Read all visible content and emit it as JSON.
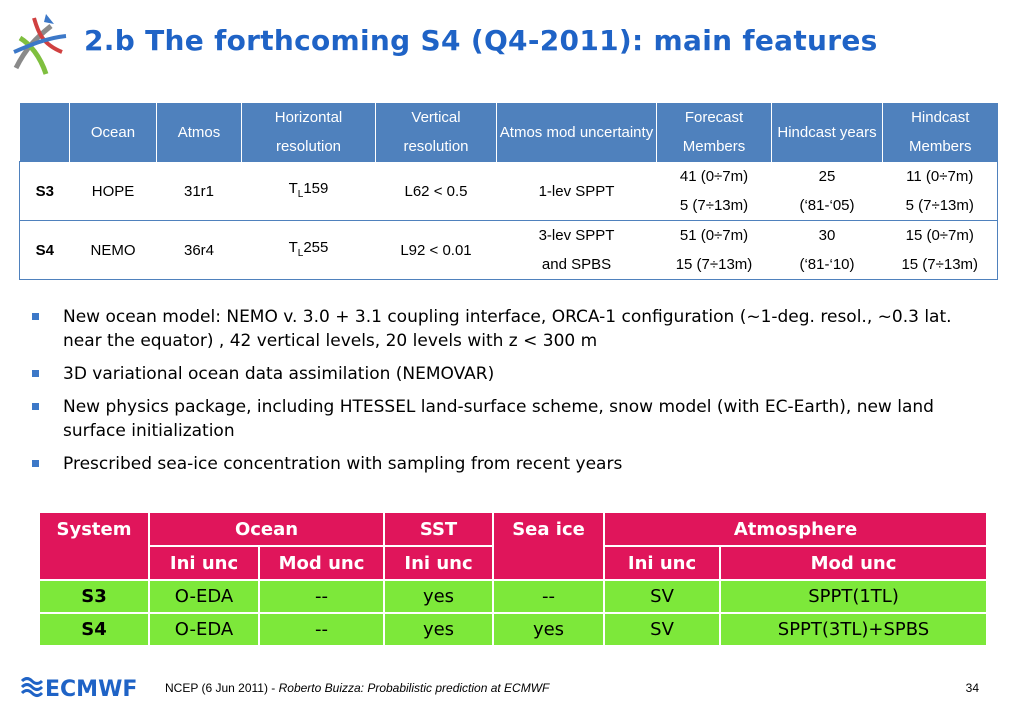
{
  "slide": {
    "title": "2.b The forthcoming S4 (Q4-2011): main features"
  },
  "table1": {
    "headers": [
      "",
      "Ocean",
      "Atmos",
      "Horizontal resolution",
      "Vertical resolution",
      "Atmos mod uncertainty",
      "Forecast Members",
      "Hindcast years",
      "Hindcast Members"
    ],
    "rows": [
      {
        "system": "S3",
        "ocean": "HOPE",
        "atmos": "31r1",
        "hres_prefix": "T",
        "hres_sub": "L",
        "hres_num": "159",
        "vres": "L62 < 0.5",
        "atm_unc": [
          "1-lev SPPT"
        ],
        "fc_members": [
          "41 (0÷7m)",
          "5 (7÷13m)"
        ],
        "hc_years": [
          "25",
          "(‘81-‘05)"
        ],
        "hc_members": [
          "11 (0÷7m)",
          "5 (7÷13m)"
        ]
      },
      {
        "system": "S4",
        "ocean": "NEMO",
        "atmos": "36r4",
        "hres_prefix": "T",
        "hres_sub": "L",
        "hres_num": "255",
        "vres": "L92 < 0.01",
        "atm_unc": [
          "3-lev SPPT",
          "and SPBS"
        ],
        "fc_members": [
          "51 (0÷7m)",
          "15 (7÷13m)"
        ],
        "hc_years": [
          "30",
          "(‘81-‘10)"
        ],
        "hc_members": [
          "15 (0÷7m)",
          "15 (7÷13m)"
        ]
      }
    ]
  },
  "bullets": [
    "New ocean model: NEMO v. 3.0 + 3.1 coupling interface,  ORCA-1 configuration (~1-deg. resol., ~0.3 lat. near the equator) , 42 vertical levels, 20 levels with z < 300 m",
    "3D variational ocean data assimilation (NEMOVAR)",
    "New physics package, including HTESSEL land-surface scheme, snow model (with EC-Earth), new land surface initialization",
    "Prescribed sea-ice concentration with sampling from recent years"
  ],
  "table2": {
    "group_headers": {
      "system": "System",
      "ocean": "Ocean",
      "sst": "SST",
      "seaice": "Sea ice",
      "atmosphere": "Atmosphere"
    },
    "sub_headers": {
      "ocean_ini": "Ini unc",
      "ocean_mod": "Mod unc",
      "sst_ini": "Ini unc",
      "atm_ini": "Ini unc",
      "atm_mod": "Mod unc"
    },
    "rows": [
      [
        "S3",
        "O-EDA",
        "--",
        "yes",
        "--",
        "SV",
        "SPPT(1TL)"
      ],
      [
        "S4",
        "O-EDA",
        "--",
        "yes",
        "yes",
        "SV",
        "SPPT(3TL)+SPBS"
      ]
    ]
  },
  "footer": {
    "prefix": "NCEP (6 Jun 2011) - ",
    "italic": "Roberto Buizza: Probabilistic prediction at ECMWF",
    "page": "34",
    "logo_text": "ECMWF"
  },
  "colors": {
    "title": "#1f63c6",
    "table1_header": "#4f81bd",
    "table2_header": "#e0155b",
    "table2_body": "#7de83a",
    "logo": "#1f63c6"
  }
}
